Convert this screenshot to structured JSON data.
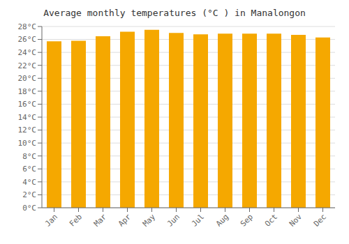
{
  "chart_data": {
    "type": "bar",
    "title": "Average monthly temperatures (°C ) in Manalongon",
    "categories": [
      "Jan",
      "Feb",
      "Mar",
      "Apr",
      "May",
      "Jun",
      "Jul",
      "Aug",
      "Sep",
      "Oct",
      "Nov",
      "Dec"
    ],
    "values": [
      25.7,
      25.8,
      26.5,
      27.2,
      27.5,
      27.0,
      26.8,
      26.9,
      26.9,
      26.9,
      26.7,
      26.3
    ],
    "color": "#F5A800",
    "ylim": [
      0,
      28
    ],
    "yticks": [
      {
        "value": 0,
        "label": "0°C"
      },
      {
        "value": 2,
        "label": "2°C"
      },
      {
        "value": 4,
        "label": "4°C"
      },
      {
        "value": 6,
        "label": "6°C"
      },
      {
        "value": 8,
        "label": "8°C"
      },
      {
        "value": 10,
        "label": "10°C"
      },
      {
        "value": 12,
        "label": "12°C"
      },
      {
        "value": 14,
        "label": "14°C"
      },
      {
        "value": 16,
        "label": "16°C"
      },
      {
        "value": 18,
        "label": "18°C"
      },
      {
        "value": 20,
        "label": "20°C"
      },
      {
        "value": 22,
        "label": "22°C"
      },
      {
        "value": 24,
        "label": "24°C"
      },
      {
        "value": 26,
        "label": "26°C"
      },
      {
        "value": 28,
        "label": "28°C"
      }
    ],
    "grid": true
  }
}
